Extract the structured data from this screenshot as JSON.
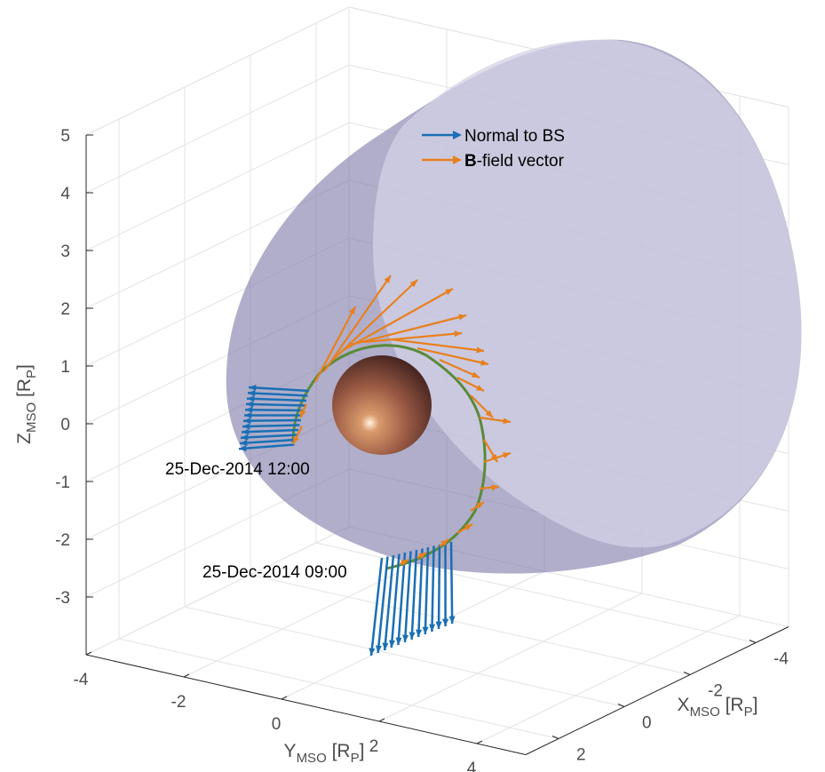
{
  "chart_data": {
    "type": "quiver3d",
    "xlabel": [
      "X",
      "MSO",
      " [R",
      "P",
      "]"
    ],
    "ylabel": [
      "Y",
      "MSO",
      " [R",
      "P",
      "]"
    ],
    "zlabel": [
      "Z",
      "MSO",
      " [R",
      "P",
      "]"
    ],
    "xlim": [
      -5,
      3
    ],
    "ylim": [
      -4,
      5
    ],
    "zlim": [
      -4,
      5
    ],
    "xticks": [
      -4,
      -2,
      0,
      2
    ],
    "yticks": [
      -4,
      -2,
      0,
      2,
      4
    ],
    "zticks": [
      5,
      4,
      3,
      2,
      1,
      0,
      -1,
      -2,
      -3
    ],
    "grid": true,
    "legend": [
      {
        "text": "Normal to BS",
        "color": "#1a6fb5"
      },
      {
        "bold": "B",
        "text": "-field vector",
        "color": "#e8801e"
      }
    ],
    "annotations": [
      "25-Dec-2014 12:00",
      "25-Dec-2014 09:00"
    ]
  }
}
